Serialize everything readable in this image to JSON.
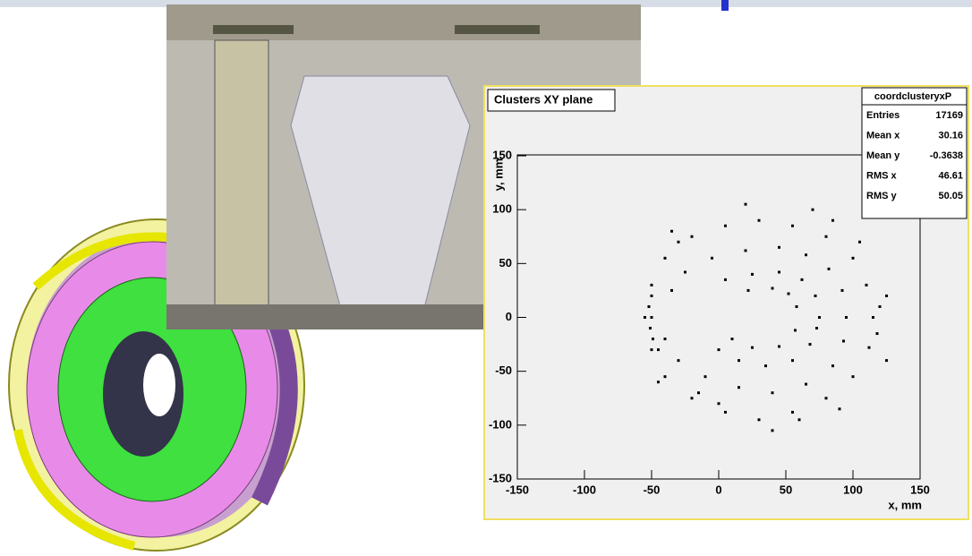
{
  "chart_data": {
    "type": "scatter",
    "title": "Clusters XY plane",
    "x_label": "x, mm",
    "y_label": "y, mm",
    "color": "#000000",
    "stats_title": "coordclusteryxP",
    "stats": [
      {
        "label": "Entries",
        "value": 17169
      },
      {
        "label": "Mean x",
        "value": 30.16
      },
      {
        "label": "Mean y",
        "value": -0.3638
      },
      {
        "label": "RMS x",
        "value": 46.61
      },
      {
        "label": "RMS y",
        "value": 50.05
      }
    ],
    "xlim": [
      -150,
      150
    ],
    "ylim": [
      -150,
      150
    ],
    "xticks": [
      -150,
      -100,
      -50,
      0,
      50,
      100,
      150
    ],
    "yticks": [
      -150,
      -100,
      -50,
      0,
      50,
      100,
      150
    ],
    "x": [
      115,
      110,
      100,
      80,
      55,
      30,
      5,
      -20,
      -40,
      -50,
      -55,
      -50,
      -40,
      -20,
      5,
      30,
      55,
      80,
      100,
      112,
      120,
      118,
      70,
      20,
      -30,
      40,
      90,
      125,
      95,
      92,
      82,
      65,
      45,
      20,
      -5,
      -25,
      -30,
      -10,
      15,
      40,
      65,
      85,
      93,
      75,
      72,
      62,
      45,
      25,
      5,
      0,
      15,
      35,
      55,
      68,
      73,
      58,
      52,
      40,
      22,
      10,
      25,
      45,
      57,
      -50,
      -52,
      -50,
      -51,
      -49,
      -45,
      -40,
      -35,
      -15,
      0,
      60,
      85,
      105,
      -45,
      125,
      -35
    ],
    "values": [
      0,
      30,
      55,
      75,
      85,
      90,
      85,
      75,
      55,
      30,
      0,
      -30,
      -55,
      -75,
      -88,
      -95,
      -88,
      -75,
      -55,
      -28,
      10,
      -15,
      100,
      105,
      70,
      -105,
      -85,
      20,
      0,
      25,
      45,
      58,
      65,
      62,
      55,
      42,
      -40,
      -55,
      -65,
      -70,
      -62,
      -45,
      -22,
      0,
      20,
      35,
      42,
      40,
      35,
      -30,
      -40,
      -45,
      -40,
      -25,
      -10,
      10,
      22,
      27,
      25,
      -20,
      -28,
      -27,
      -12,
      20,
      10,
      0,
      -10,
      -20,
      -30,
      -20,
      25,
      -70,
      -80,
      -95,
      90,
      70,
      -60,
      -40,
      80
    ]
  }
}
